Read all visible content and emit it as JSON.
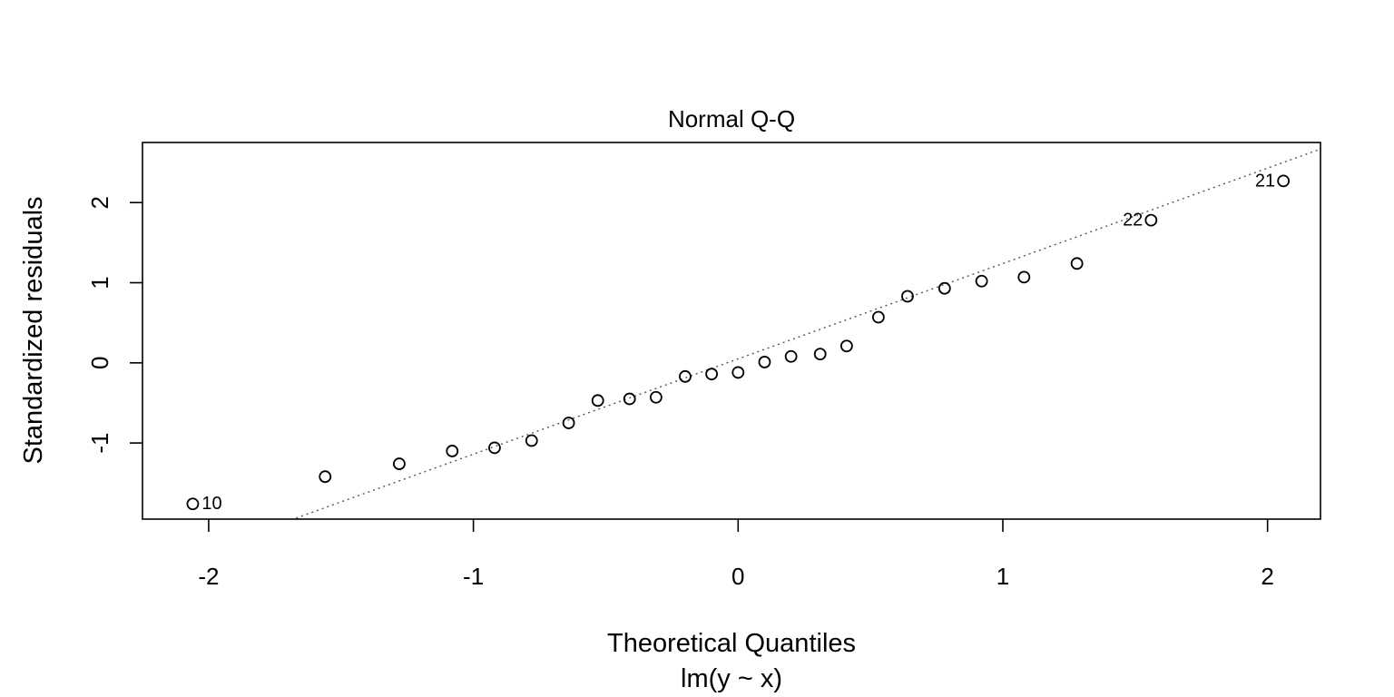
{
  "chart_data": {
    "type": "scatter",
    "title": "Normal Q-Q",
    "xlabel": "Theoretical Quantiles",
    "sublabel": "lm(y ~ x)",
    "ylabel": "Standardized residuals",
    "xlim": [
      -2.25,
      2.2
    ],
    "ylim": [
      -1.95,
      2.75
    ],
    "xticks": [
      -2,
      -1,
      0,
      1,
      2
    ],
    "xtick_labels": [
      "-2",
      "-1",
      "0",
      "1",
      "2"
    ],
    "yticks": [
      -1,
      0,
      1,
      2
    ],
    "ytick_labels": [
      "-1",
      "0",
      "1",
      "2"
    ],
    "grid": false,
    "reference_line": {
      "intercept": 0.05,
      "slope": 1.19,
      "style": "dotted"
    },
    "x": [
      -2.06,
      -1.56,
      -1.28,
      -1.08,
      -0.92,
      -0.78,
      -0.64,
      -0.53,
      -0.41,
      -0.31,
      -0.2,
      -0.1,
      0.0,
      0.1,
      0.2,
      0.31,
      0.41,
      0.53,
      0.64,
      0.78,
      0.92,
      1.08,
      1.28,
      1.56,
      2.06
    ],
    "y": [
      -1.76,
      -1.42,
      -1.26,
      -1.1,
      -1.06,
      -0.97,
      -0.75,
      -0.47,
      -0.45,
      -0.43,
      -0.17,
      -0.14,
      -0.12,
      0.01,
      0.08,
      0.11,
      0.21,
      0.57,
      0.83,
      0.93,
      1.02,
      1.07,
      1.24,
      1.78,
      2.27
    ],
    "point_labels": [
      {
        "index": 0,
        "text": "10",
        "side": "right"
      },
      {
        "index": 23,
        "text": "22",
        "side": "left"
      },
      {
        "index": 24,
        "text": "21",
        "side": "left"
      }
    ]
  }
}
